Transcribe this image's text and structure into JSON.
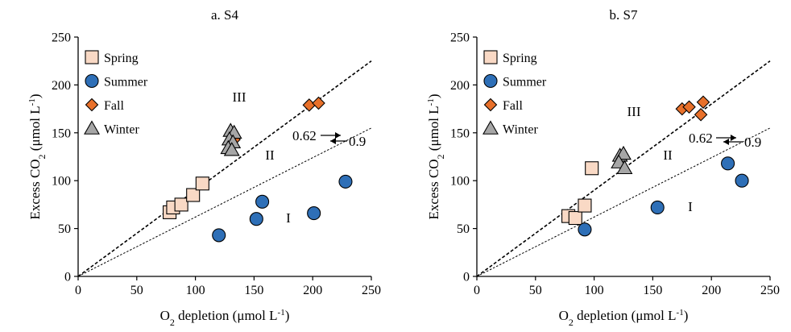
{
  "chart_data": [
    {
      "type": "scatter",
      "title": "a. S4",
      "xlabel_parts": [
        "O",
        "2",
        " depletion (μmol L",
        "-1",
        ")"
      ],
      "ylabel_parts": [
        "Excess CO",
        "2",
        "  (μmol L",
        "-1",
        ")"
      ],
      "xlim": [
        0,
        250
      ],
      "ylim": [
        0,
        250
      ],
      "xticks": [
        0,
        50,
        100,
        150,
        200,
        250
      ],
      "yticks": [
        0,
        50,
        100,
        150,
        200,
        250
      ],
      "legend": {
        "position": "top-left"
      },
      "series": [
        {
          "name": "Spring",
          "marker": "square",
          "color": "#f9d9c5",
          "x": [
            78,
            81,
            88,
            98,
            106
          ],
          "y": [
            67,
            72,
            75,
            85,
            97
          ]
        },
        {
          "name": "Summer",
          "marker": "circle",
          "color": "#2e6fb7",
          "x": [
            120,
            152,
            157,
            201,
            228
          ],
          "y": [
            43,
            60,
            78,
            66,
            99
          ]
        },
        {
          "name": "Fall",
          "marker": "diamond",
          "color": "#e8702a",
          "x": [
            133,
            197,
            205
          ],
          "y": [
            143,
            179,
            181
          ]
        },
        {
          "name": "Winter",
          "marker": "triangle",
          "color": "#a6a6a6",
          "x": [
            130,
            133,
            129,
            132,
            128,
            131
          ],
          "y": [
            152,
            150,
            143,
            140,
            134,
            132
          ]
        }
      ],
      "reference_lines": [
        {
          "slope": 0.9,
          "label": "0.9",
          "style": "dashed-bold"
        },
        {
          "slope": 0.62,
          "label": "0.62",
          "style": "dashed-fine"
        }
      ],
      "region_labels": [
        "III",
        "II",
        "I"
      ]
    },
    {
      "type": "scatter",
      "title": "b. S7",
      "xlabel_parts": [
        "O",
        "2",
        " depletion (μmol L",
        "-1",
        ")"
      ],
      "ylabel_parts": [
        "Excess CO",
        "2",
        "  (μmol L",
        "-1",
        ")"
      ],
      "xlim": [
        0,
        250
      ],
      "ylim": [
        0,
        250
      ],
      "xticks": [
        0,
        50,
        100,
        150,
        200,
        250
      ],
      "yticks": [
        0,
        50,
        100,
        150,
        200,
        250
      ],
      "legend": {
        "position": "top-left"
      },
      "series": [
        {
          "name": "Spring",
          "marker": "square",
          "color": "#f9d9c5",
          "x": [
            78,
            84,
            92,
            98
          ],
          "y": [
            63,
            61,
            74,
            113
          ]
        },
        {
          "name": "Summer",
          "marker": "circle",
          "color": "#2e6fb7",
          "x": [
            92,
            154,
            214,
            226
          ],
          "y": [
            49,
            72,
            118,
            100
          ]
        },
        {
          "name": "Fall",
          "marker": "diamond",
          "color": "#e8702a",
          "x": [
            175,
            181,
            193,
            191
          ],
          "y": [
            175,
            177,
            182,
            169
          ]
        },
        {
          "name": "Winter",
          "marker": "triangle",
          "color": "#a6a6a6",
          "x": [
            122,
            125,
            121,
            126
          ],
          "y": [
            126,
            128,
            119,
            113
          ]
        }
      ],
      "reference_lines": [
        {
          "slope": 0.9,
          "label": "0.9",
          "style": "dashed-bold"
        },
        {
          "slope": 0.62,
          "label": "0.62",
          "style": "dashed-fine"
        }
      ],
      "region_labels": [
        "III",
        "II",
        "I"
      ]
    }
  ]
}
